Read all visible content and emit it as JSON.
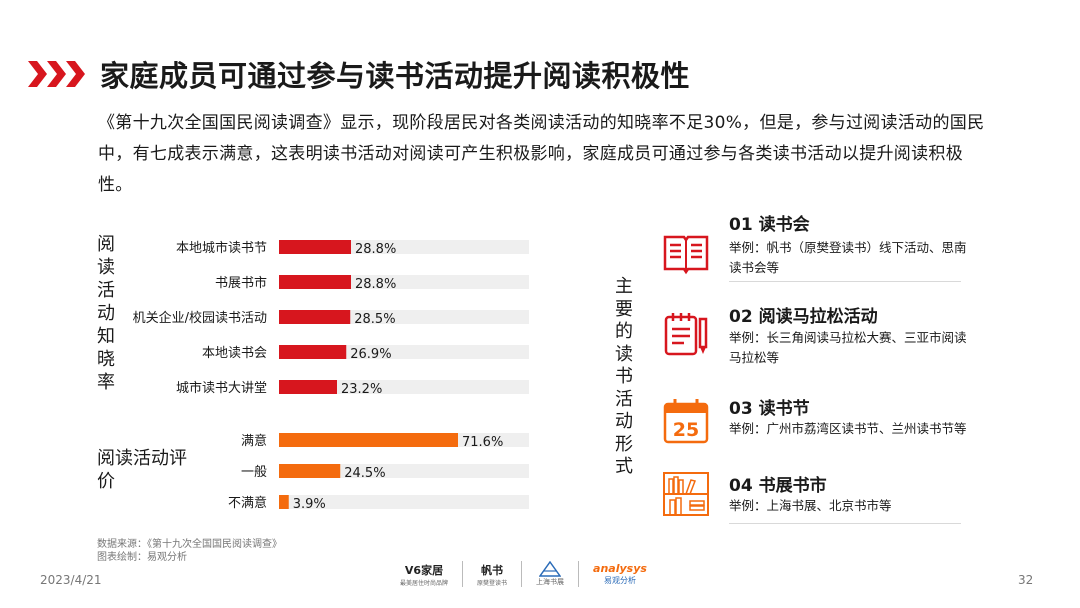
{
  "header": {
    "title": "家庭成员可通过参与读书活动提升阅读积极性",
    "intro": "《第十九次全国国民阅读调查》显示，现阶段居民对各类阅读活动的知晓率不足30%，但是，参与过阅读活动的国民中，有七成表示满意，这表明读书活动对阅读可产生积极影响，家庭成员可通过参与各类读书活动以提升阅读积极性。"
  },
  "colors": {
    "accent_red": "#d7161e",
    "accent_orange": "#f46b0e",
    "track": "#efefef"
  },
  "chart_data": [
    {
      "type": "bar",
      "orientation": "horizontal",
      "ylabel": "阅读活动知晓率",
      "categories": [
        "本地城市读书节",
        "书展书市",
        "机关企业/校园读书活动",
        "本地读书会",
        "城市读书大讲堂"
      ],
      "values": [
        28.8,
        28.8,
        28.5,
        26.9,
        23.2
      ],
      "value_labels": [
        "28.8%",
        "28.8%",
        "28.5%",
        "26.9%",
        "23.2%"
      ],
      "xlim": [
        0,
        100
      ],
      "color": "#d7161e"
    },
    {
      "type": "bar",
      "orientation": "horizontal",
      "ylabel": "阅读活动评价",
      "categories": [
        "满意",
        "一般",
        "不满意"
      ],
      "values": [
        71.6,
        24.5,
        3.9
      ],
      "value_labels": [
        "71.6%",
        "24.5%",
        "3.9%"
      ],
      "xlim": [
        0,
        100
      ],
      "color": "#f46b0e"
    }
  ],
  "forms_section": {
    "label": "主要的读书活动形式",
    "items": [
      {
        "title": "01 读书会",
        "desc": "举例：帆书（原樊登读书）线下活动、思南读书会等",
        "icon": "open-book-icon"
      },
      {
        "title": "02 阅读马拉松活动",
        "desc": "举例：长三角阅读马拉松大赛、三亚市阅读马拉松等",
        "icon": "notepad-pencil-icon"
      },
      {
        "title": "03 读书节",
        "desc": "举例：广州市荔湾区读书节、兰州读书节等",
        "icon": "calendar-icon",
        "calendar_number": "25"
      },
      {
        "title": "04 书展书市",
        "desc": "举例：上海书展、北京书市等",
        "icon": "bookshelf-icon"
      }
    ]
  },
  "footer": {
    "source": "数据来源：《第十九次全国国民阅读调查》",
    "drawn_by": "图表绘制：易观分析",
    "date": "2023/4/21",
    "page": "32",
    "logos": [
      {
        "main": "V6家居",
        "sub": "最美居住时尚品牌"
      },
      {
        "main": "帆书",
        "sub": "原樊登读书"
      },
      {
        "main": "上海书展",
        "sub": ""
      },
      {
        "main": "analysys",
        "sub": "易观分析"
      }
    ]
  }
}
